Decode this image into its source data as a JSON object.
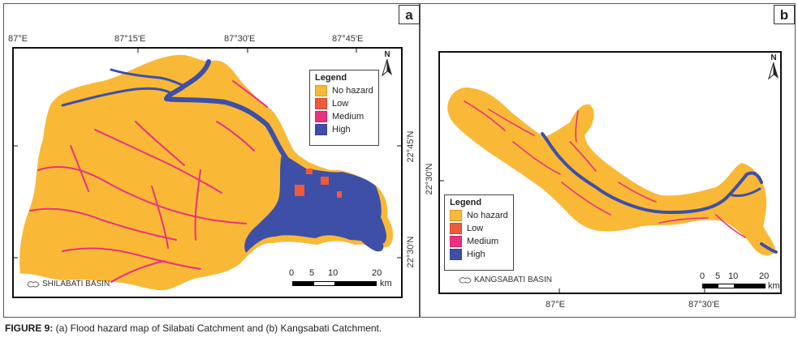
{
  "colors": {
    "no_hazard": "#F9B936",
    "low": "#EE5A3C",
    "medium": "#E8327F",
    "high": "#3E4FA8"
  },
  "panel_a": {
    "letter": "a",
    "top_ticks": [
      "87°E",
      "87°15'E",
      "87°30'E",
      "87°45'E"
    ],
    "right_ticks": [
      "22°45'N",
      "22°30'N"
    ],
    "north_label": "N",
    "legend": {
      "title": "Legend",
      "items": [
        "No hazard",
        "Low",
        "Medium",
        "High"
      ]
    },
    "scale": {
      "numbers": [
        "0",
        "5",
        "10",
        "20"
      ],
      "unit": "km"
    },
    "basin_label": "SHILABATI BASIN"
  },
  "panel_b": {
    "letter": "b",
    "bottom_ticks": [
      "87°E",
      "87°30'E"
    ],
    "left_ticks": [
      "22°30'N"
    ],
    "north_label": "N",
    "legend": {
      "title": "Legend",
      "items": [
        "No hazard",
        "Low",
        "Medium",
        "High"
      ]
    },
    "scale": {
      "numbers": [
        "0",
        "5",
        "10",
        "20"
      ],
      "unit": "km"
    },
    "basin_label": "KANGSABATI BASIN"
  },
  "caption": {
    "label": "FIGURE 9:",
    "text": " (a) Flood hazard map of Silabati Catchment and (b) Kangsabati Catchment."
  }
}
